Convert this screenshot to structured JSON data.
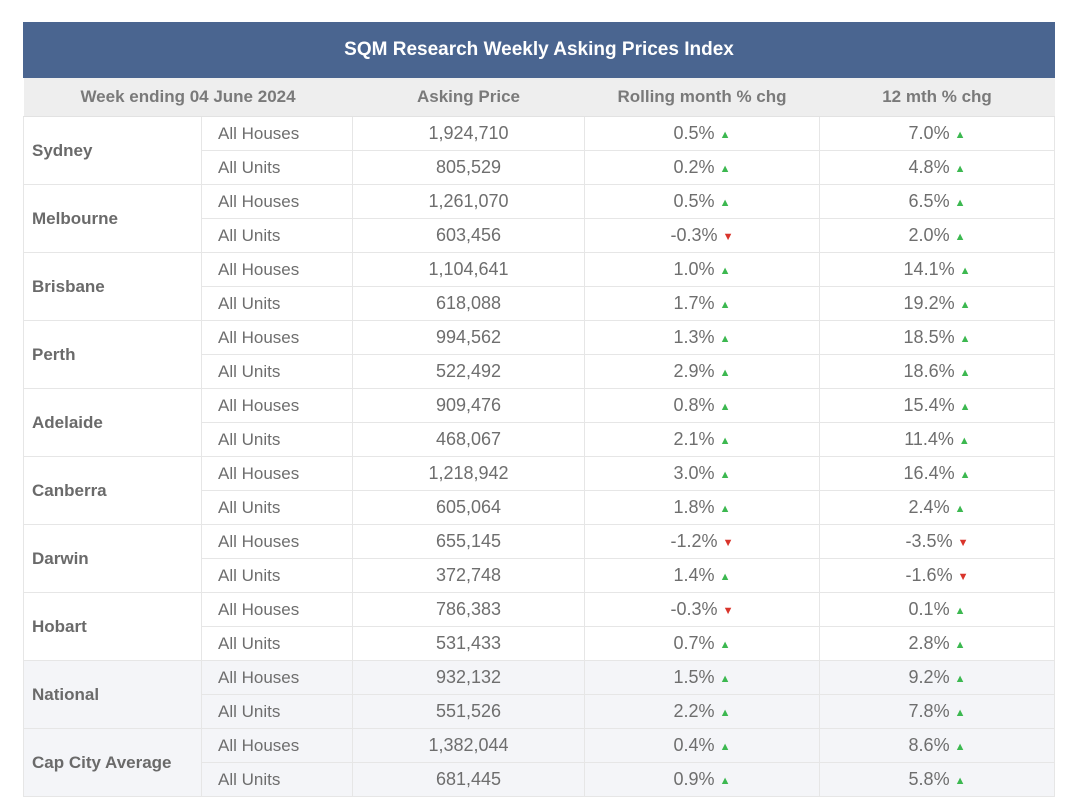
{
  "title": "SQM Research Weekly Asking Prices Index",
  "headers": {
    "week": "Week ending 04 June 2024",
    "asking_price": "Asking Price",
    "rolling_month": "Rolling month % chg",
    "twelve_month": "12 mth % chg"
  },
  "colors": {
    "header_bg": "#4a6590",
    "up": "#3cb850",
    "down": "#d9342b"
  },
  "icons": {
    "up": "triangle-up-icon",
    "down": "triangle-down-icon"
  },
  "cities": [
    {
      "name": "Sydney",
      "rows": [
        {
          "type": "All Houses",
          "price": "1,924,710",
          "month": "0.5%",
          "month_dir": "up",
          "year": "7.0%",
          "year_dir": "up"
        },
        {
          "type": "All Units",
          "price": "805,529",
          "month": "0.2%",
          "month_dir": "up",
          "year": "4.8%",
          "year_dir": "up"
        }
      ]
    },
    {
      "name": "Melbourne",
      "rows": [
        {
          "type": "All Houses",
          "price": "1,261,070",
          "month": "0.5%",
          "month_dir": "up",
          "year": "6.5%",
          "year_dir": "up"
        },
        {
          "type": "All Units",
          "price": "603,456",
          "month": "-0.3%",
          "month_dir": "down",
          "year": "2.0%",
          "year_dir": "up"
        }
      ]
    },
    {
      "name": "Brisbane",
      "rows": [
        {
          "type": "All Houses",
          "price": "1,104,641",
          "month": "1.0%",
          "month_dir": "up",
          "year": "14.1%",
          "year_dir": "up"
        },
        {
          "type": "All Units",
          "price": "618,088",
          "month": "1.7%",
          "month_dir": "up",
          "year": "19.2%",
          "year_dir": "up"
        }
      ]
    },
    {
      "name": "Perth",
      "rows": [
        {
          "type": "All Houses",
          "price": "994,562",
          "month": "1.3%",
          "month_dir": "up",
          "year": "18.5%",
          "year_dir": "up"
        },
        {
          "type": "All Units",
          "price": "522,492",
          "month": "2.9%",
          "month_dir": "up",
          "year": "18.6%",
          "year_dir": "up"
        }
      ]
    },
    {
      "name": "Adelaide",
      "rows": [
        {
          "type": "All Houses",
          "price": "909,476",
          "month": "0.8%",
          "month_dir": "up",
          "year": "15.4%",
          "year_dir": "up"
        },
        {
          "type": "All Units",
          "price": "468,067",
          "month": "2.1%",
          "month_dir": "up",
          "year": "11.4%",
          "year_dir": "up"
        }
      ]
    },
    {
      "name": "Canberra",
      "rows": [
        {
          "type": "All Houses",
          "price": "1,218,942",
          "month": "3.0%",
          "month_dir": "up",
          "year": "16.4%",
          "year_dir": "up"
        },
        {
          "type": "All Units",
          "price": "605,064",
          "month": "1.8%",
          "month_dir": "up",
          "year": "2.4%",
          "year_dir": "up"
        }
      ]
    },
    {
      "name": "Darwin",
      "rows": [
        {
          "type": "All Houses",
          "price": "655,145",
          "month": "-1.2%",
          "month_dir": "down",
          "year": "-3.5%",
          "year_dir": "down"
        },
        {
          "type": "All Units",
          "price": "372,748",
          "month": "1.4%",
          "month_dir": "up",
          "year": "-1.6%",
          "year_dir": "down"
        }
      ]
    },
    {
      "name": "Hobart",
      "rows": [
        {
          "type": "All Houses",
          "price": "786,383",
          "month": "-0.3%",
          "month_dir": "down",
          "year": "0.1%",
          "year_dir": "up"
        },
        {
          "type": "All Units",
          "price": "531,433",
          "month": "0.7%",
          "month_dir": "up",
          "year": "2.8%",
          "year_dir": "up"
        }
      ]
    },
    {
      "name": "National",
      "tinted": true,
      "rows": [
        {
          "type": "All Houses",
          "price": "932,132",
          "month": "1.5%",
          "month_dir": "up",
          "year": "9.2%",
          "year_dir": "up"
        },
        {
          "type": "All Units",
          "price": "551,526",
          "month": "2.2%",
          "month_dir": "up",
          "year": "7.8%",
          "year_dir": "up"
        }
      ]
    },
    {
      "name": "Cap City Average",
      "tinted": true,
      "rows": [
        {
          "type": "All Houses",
          "price": "1,382,044",
          "month": "0.4%",
          "month_dir": "up",
          "year": "8.6%",
          "year_dir": "up"
        },
        {
          "type": "All Units",
          "price": "681,445",
          "month": "0.9%",
          "month_dir": "up",
          "year": "5.8%",
          "year_dir": "up"
        }
      ]
    }
  ]
}
